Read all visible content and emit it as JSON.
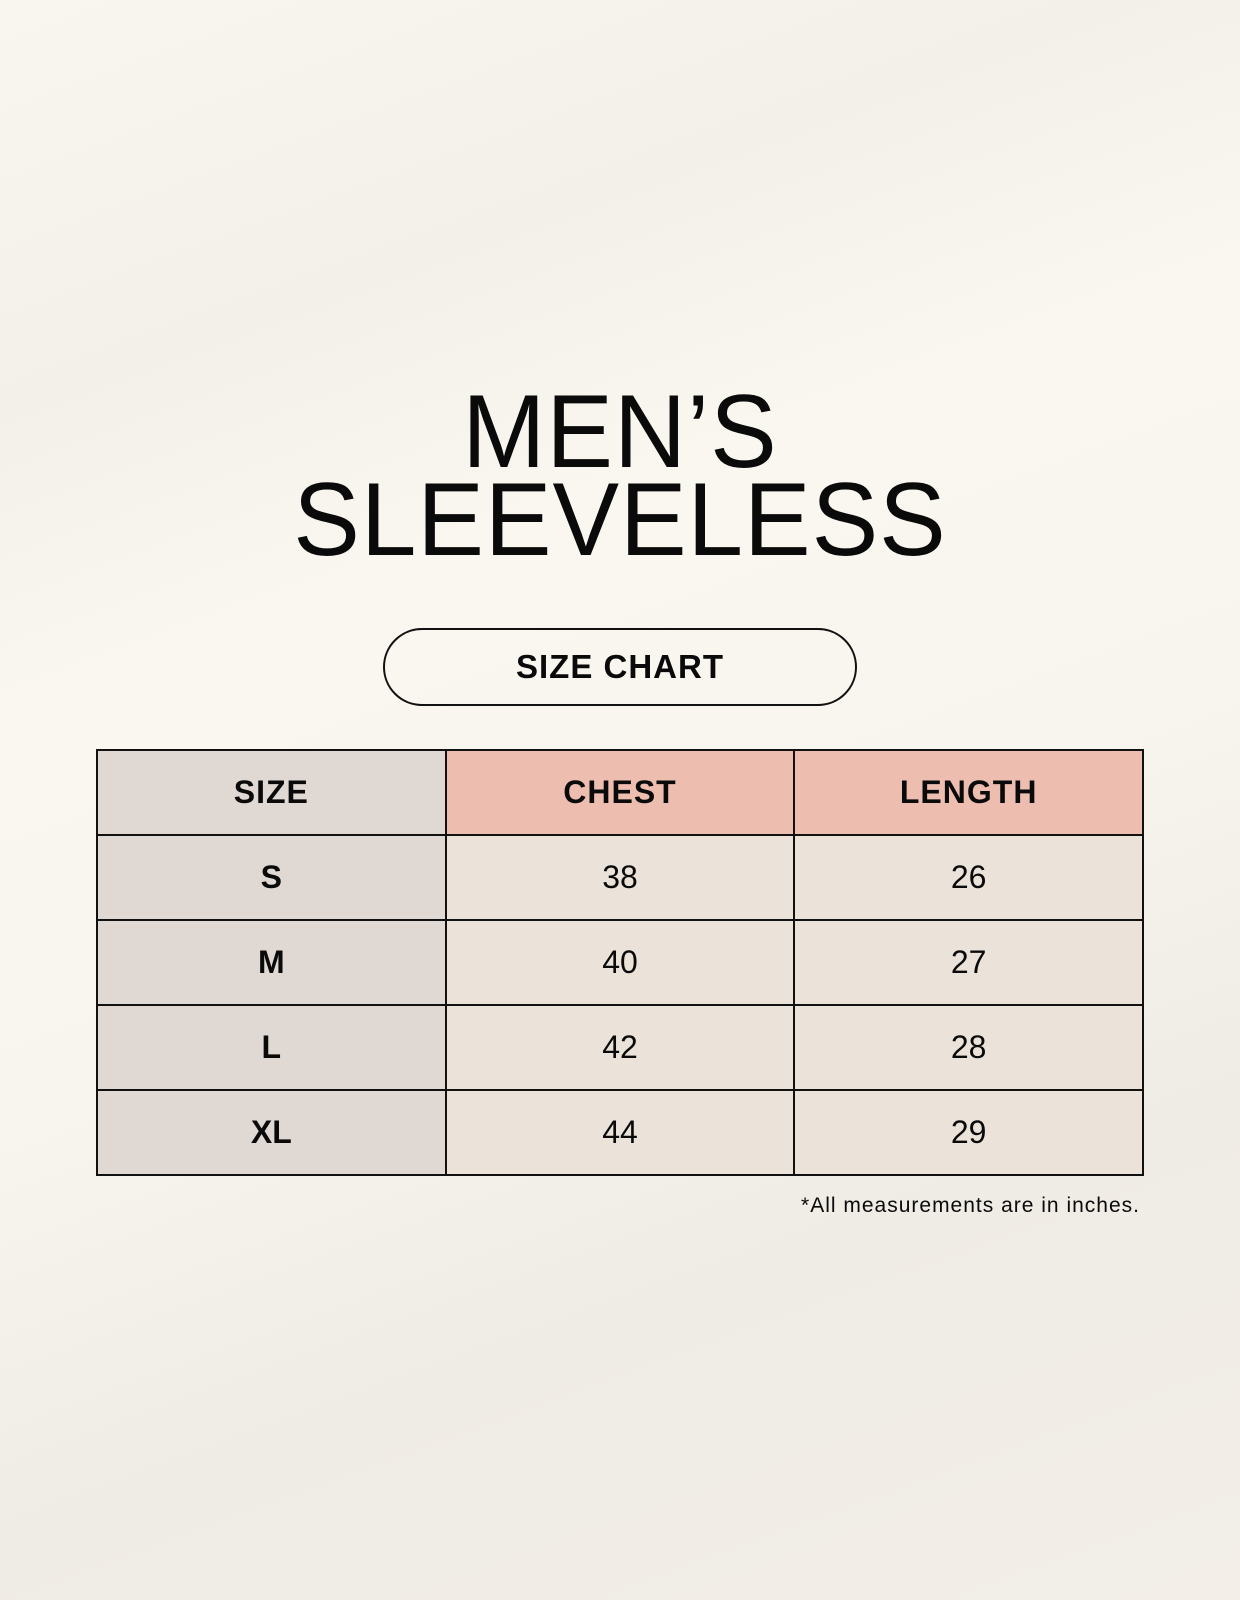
{
  "title": {
    "line1": "MEN’S",
    "line2": "SLEEVELESS"
  },
  "badge": "SIZE CHART",
  "table": {
    "headers": [
      "SIZE",
      "CHEST",
      "LENGTH"
    ],
    "rows": [
      [
        "S",
        "38",
        "26"
      ],
      [
        "M",
        "40",
        "27"
      ],
      [
        "L",
        "42",
        "28"
      ],
      [
        "XL",
        "44",
        "29"
      ]
    ]
  },
  "footnote": "*All measurements are in inches.",
  "colors": {
    "size_column": "#e0d8d3",
    "header_accent": "#edbdaf",
    "cell": "#ebe3d9"
  }
}
